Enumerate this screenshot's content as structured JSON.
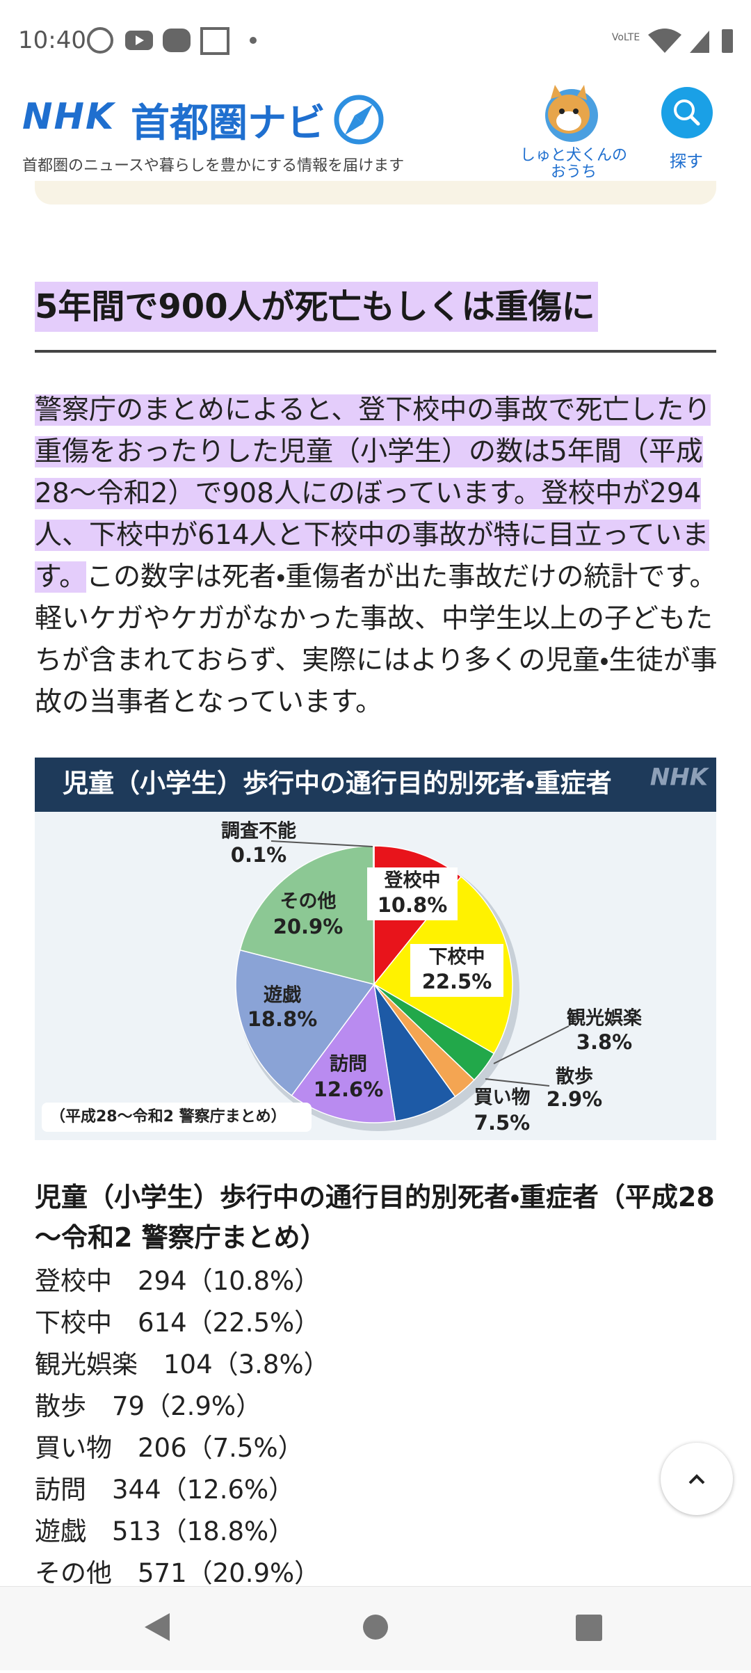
{
  "status_bar": {
    "time": "10:40"
  },
  "header": {
    "logo": "NHK",
    "site_name": "首都圏ナビ",
    "tagline": "首都圏のニュースや暮らしを豊かにする情報を届けます",
    "mascot_link": "しゅと犬くんの\nおうち",
    "search": "探す"
  },
  "article": {
    "heading": "5年間で900人が死亡もしくは重傷に",
    "paragraph_highlight": "警察庁のまとめによると、登下校中の事故で死亡したり重傷をおったりした児童（小学生）の数は5年間（平成28～令和2）で908人にのぼっています。登校中が294人、下校中が614人と下校中の事故が特に目立っています。",
    "paragraph_rest": "この数字は死者・重傷者が出た事故だけの統計です。軽いケガやケガがなかった事故、中学生以上の子どもたちが含まれておらず、実際にはより多くの児童・生徒が事故の当事者となっています。"
  },
  "chart_data": {
    "type": "pie",
    "title": "児童（小学生）歩行中の通行目的別死者・重症者",
    "watermark": "NHK",
    "note": "（平成28～令和2 警察庁まとめ）",
    "categories": [
      "登校中",
      "下校中",
      "観光娯楽",
      "散歩",
      "買い物",
      "訪問",
      "遊戯",
      "その他",
      "調査不能"
    ],
    "values": [
      10.8,
      22.5,
      3.8,
      2.9,
      7.5,
      12.6,
      18.8,
      20.9,
      0.1
    ],
    "value_labels": [
      "10.8%",
      "22.5%",
      "3.8%",
      "2.9%",
      "7.5%",
      "12.6%",
      "18.8%",
      "20.9%",
      "0.1%"
    ],
    "colors": [
      "#e8141b",
      "#fff200",
      "#22a84a",
      "#f4a552",
      "#1d5aa6",
      "#b98bf0",
      "#8aa3d6",
      "#8cc894",
      "#cfd8cf"
    ]
  },
  "list": {
    "heading": "児童（小学生）歩行中の通行目的別死者・重症者（平成28～令和2 警察庁まとめ）",
    "items": [
      "登校中　294（10.8%）",
      "下校中　614（22.5%）",
      "観光娯楽　104（3.8%）",
      "散歩　79（2.9%）",
      "買い物　206（7.5%）",
      "訪問　344（12.6%）",
      "遊戯　513（18.8%）",
      "その他　571（20.9%）"
    ]
  }
}
